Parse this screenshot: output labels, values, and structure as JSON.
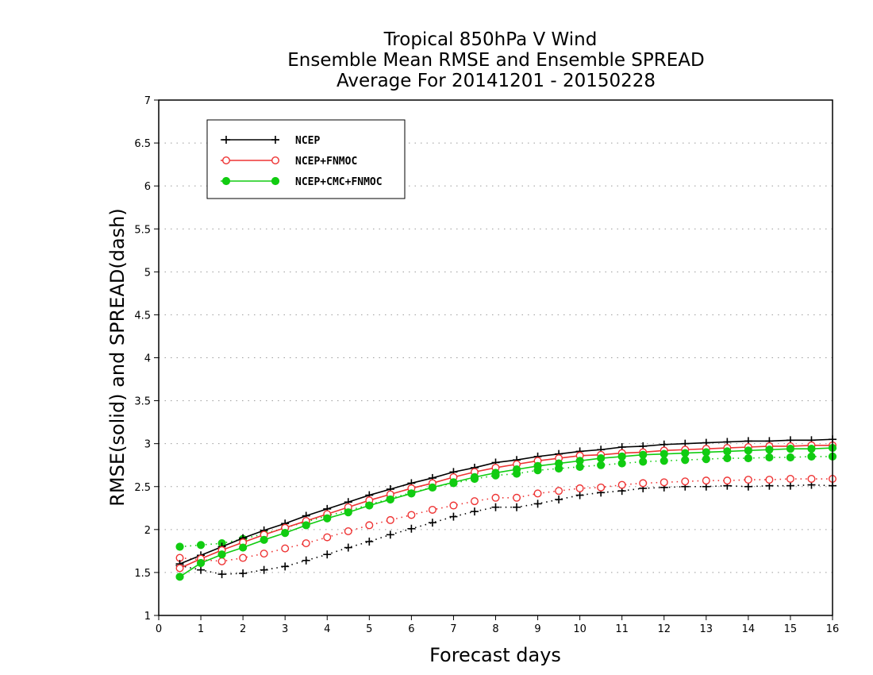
{
  "chart_data": {
    "type": "line",
    "title_lines": [
      "Tropical 850hPa V Wind",
      "Ensemble Mean RMSE and Ensemble SPREAD",
      "Average For 20141201 - 20150228"
    ],
    "xlabel": "Forecast days",
    "ylabel": "RMSE(solid) and SPREAD(dash)",
    "xlim": [
      0,
      16
    ],
    "ylim": [
      1,
      7
    ],
    "x_ticks": [
      "0",
      "1",
      "2",
      "3",
      "4",
      "5",
      "6",
      "7",
      "8",
      "9",
      "10",
      "11",
      "12",
      "13",
      "14",
      "15",
      "16"
    ],
    "y_ticks": [
      "1",
      "1.5",
      "2",
      "2.5",
      "3",
      "3.5",
      "4",
      "4.5",
      "5",
      "5.5",
      "6",
      "6.5",
      "7"
    ],
    "grid": "horizontal dotted",
    "legend_position": "top-left",
    "x": [
      0.5,
      1,
      1.5,
      2,
      2.5,
      3,
      3.5,
      4,
      4.5,
      5,
      5.5,
      6,
      6.5,
      7,
      7.5,
      8,
      8.5,
      9,
      9.5,
      10,
      10.5,
      11,
      11.5,
      12,
      12.5,
      13,
      13.5,
      14,
      14.5,
      15,
      15.5,
      16
    ],
    "series": [
      {
        "name": "NCEP",
        "color": "#000000",
        "marker": "plus",
        "rmse": [
          1.6,
          1.7,
          1.8,
          1.9,
          1.99,
          2.07,
          2.16,
          2.24,
          2.32,
          2.4,
          2.47,
          2.54,
          2.6,
          2.67,
          2.72,
          2.78,
          2.81,
          2.85,
          2.88,
          2.91,
          2.93,
          2.96,
          2.97,
          2.99,
          3.0,
          3.01,
          3.02,
          3.03,
          3.03,
          3.04,
          3.04,
          3.05
        ],
        "spread": [
          1.58,
          1.53,
          1.48,
          1.49,
          1.53,
          1.57,
          1.64,
          1.71,
          1.79,
          1.86,
          1.94,
          2.01,
          2.08,
          2.15,
          2.21,
          2.26,
          2.26,
          2.3,
          2.35,
          2.4,
          2.43,
          2.45,
          2.48,
          2.49,
          2.5,
          2.5,
          2.51,
          2.5,
          2.51,
          2.51,
          2.52,
          2.51
        ]
      },
      {
        "name": "NCEP+FNMOC",
        "color": "#ee3333",
        "marker": "open-circle",
        "rmse": [
          1.55,
          1.66,
          1.76,
          1.85,
          1.94,
          2.02,
          2.1,
          2.18,
          2.26,
          2.34,
          2.41,
          2.48,
          2.54,
          2.61,
          2.67,
          2.72,
          2.76,
          2.8,
          2.83,
          2.86,
          2.87,
          2.89,
          2.9,
          2.92,
          2.93,
          2.94,
          2.95,
          2.96,
          2.97,
          2.97,
          2.98,
          2.98
        ],
        "spread": [
          1.67,
          1.65,
          1.63,
          1.67,
          1.72,
          1.78,
          1.84,
          1.91,
          1.98,
          2.05,
          2.11,
          2.17,
          2.23,
          2.28,
          2.33,
          2.37,
          2.37,
          2.42,
          2.45,
          2.48,
          2.49,
          2.52,
          2.54,
          2.55,
          2.56,
          2.57,
          2.57,
          2.58,
          2.58,
          2.59,
          2.59,
          2.59
        ]
      },
      {
        "name": "NCEP+CMC+FNMOC",
        "color": "#11cc11",
        "marker": "filled-circle",
        "rmse": [
          1.45,
          1.61,
          1.71,
          1.79,
          1.88,
          1.96,
          2.05,
          2.13,
          2.2,
          2.28,
          2.35,
          2.42,
          2.49,
          2.55,
          2.61,
          2.66,
          2.7,
          2.74,
          2.77,
          2.8,
          2.83,
          2.85,
          2.87,
          2.88,
          2.89,
          2.9,
          2.91,
          2.92,
          2.93,
          2.94,
          2.94,
          2.95
        ],
        "spread": [
          1.8,
          1.82,
          1.84,
          1.89,
          1.95,
          2.02,
          2.09,
          2.16,
          2.22,
          2.29,
          2.36,
          2.43,
          2.49,
          2.54,
          2.59,
          2.63,
          2.65,
          2.69,
          2.71,
          2.73,
          2.75,
          2.77,
          2.79,
          2.8,
          2.81,
          2.82,
          2.83,
          2.83,
          2.84,
          2.84,
          2.85,
          2.85
        ]
      }
    ]
  }
}
